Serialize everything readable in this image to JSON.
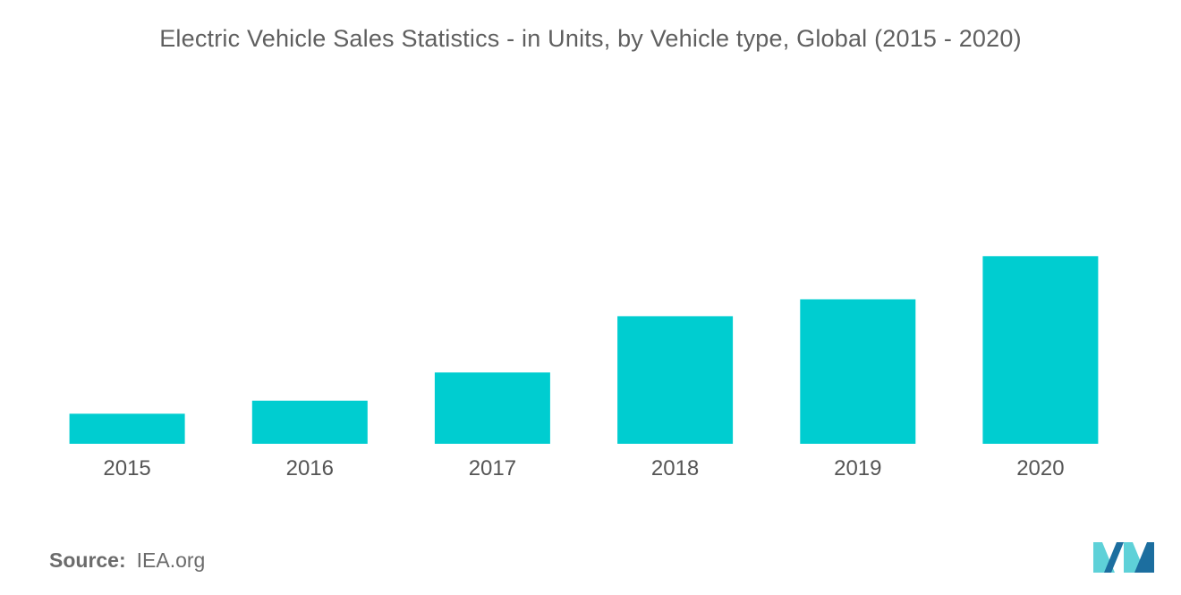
{
  "title": "Electric Vehicle Sales Statistics - in Units, by Vehicle type, Global (2015 - 2020)",
  "source": {
    "label": "Source:",
    "value": "IEA.org"
  },
  "colors": {
    "bar": "#00CDD0",
    "axis_text": "#555555",
    "title": "#5f5f5f",
    "logo_light": "#5ed1d8",
    "logo_dark": "#1c6e9f"
  },
  "chart_data": {
    "type": "bar",
    "title": "Electric Vehicle Sales Statistics - in Units, by Vehicle type, Global (2015 - 2020)",
    "categories": [
      "2015",
      "2016",
      "2017",
      "2018",
      "2019",
      "2020"
    ],
    "values": [
      16,
      23,
      38,
      68,
      77,
      100
    ],
    "xlabel": "",
    "ylabel": "",
    "ylim": [
      0,
      165
    ],
    "grid": false,
    "legend": "none",
    "value_axis_shown": false
  }
}
